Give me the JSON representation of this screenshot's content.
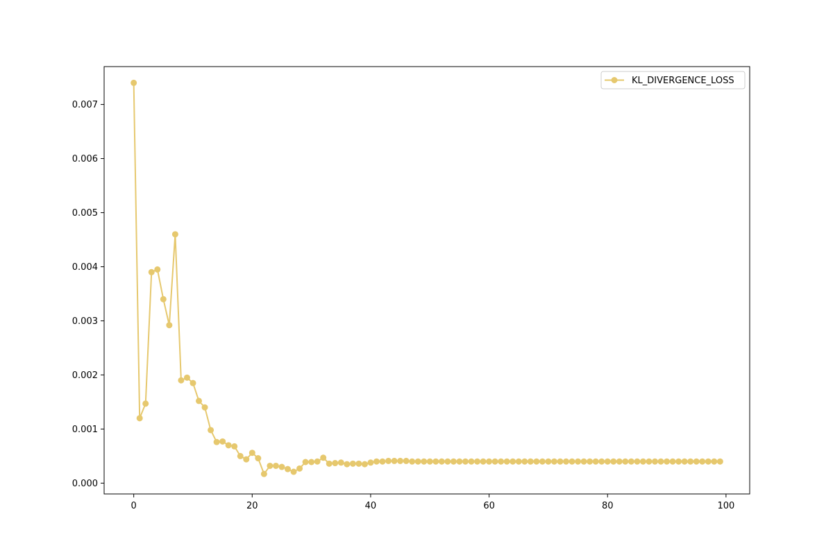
{
  "chart_data": {
    "type": "line",
    "title": "",
    "xlabel": "",
    "ylabel": "",
    "xlim": [
      -5,
      104
    ],
    "ylim": [
      -0.0002,
      0.0077
    ],
    "xticks": [
      0,
      20,
      40,
      60,
      80,
      100
    ],
    "xtick_labels": [
      "0",
      "20",
      "40",
      "60",
      "80",
      "100"
    ],
    "yticks": [
      0.0,
      0.001,
      0.002,
      0.003,
      0.004,
      0.005,
      0.006,
      0.007
    ],
    "ytick_labels": [
      "0.000",
      "0.001",
      "0.002",
      "0.003",
      "0.004",
      "0.005",
      "0.006",
      "0.007"
    ],
    "grid": false,
    "legend_position": "top-right",
    "marker": "circle",
    "series": [
      {
        "name": "KL_DIVERGENCE_LOSS",
        "color": "#e6c86e",
        "x": [
          0,
          1,
          2,
          3,
          4,
          5,
          6,
          7,
          8,
          9,
          10,
          11,
          12,
          13,
          14,
          15,
          16,
          17,
          18,
          19,
          20,
          21,
          22,
          23,
          24,
          25,
          26,
          27,
          28,
          29,
          30,
          31,
          32,
          33,
          34,
          35,
          36,
          37,
          38,
          39,
          40,
          41,
          42,
          43,
          44,
          45,
          46,
          47,
          48,
          49,
          50,
          51,
          52,
          53,
          54,
          55,
          56,
          57,
          58,
          59,
          60,
          61,
          62,
          63,
          64,
          65,
          66,
          67,
          68,
          69,
          70,
          71,
          72,
          73,
          74,
          75,
          76,
          77,
          78,
          79,
          80,
          81,
          82,
          83,
          84,
          85,
          86,
          87,
          88,
          89,
          90,
          91,
          92,
          93,
          94,
          95,
          96,
          97,
          98,
          99
        ],
        "values": [
          0.0074,
          0.0012,
          0.00147,
          0.0039,
          0.00395,
          0.0034,
          0.00292,
          0.0046,
          0.0019,
          0.00195,
          0.00185,
          0.00152,
          0.0014,
          0.00098,
          0.00076,
          0.00077,
          0.0007,
          0.00068,
          0.0005,
          0.00044,
          0.00056,
          0.00046,
          0.00017,
          0.00032,
          0.00032,
          0.0003,
          0.00026,
          0.00021,
          0.00027,
          0.00039,
          0.00039,
          0.0004,
          0.00047,
          0.00036,
          0.00037,
          0.00038,
          0.00035,
          0.00036,
          0.00036,
          0.00035,
          0.00038,
          0.0004,
          0.0004,
          0.00041,
          0.00041,
          0.00041,
          0.00041,
          0.0004,
          0.0004,
          0.0004,
          0.0004,
          0.0004,
          0.0004,
          0.0004,
          0.0004,
          0.0004,
          0.0004,
          0.0004,
          0.0004,
          0.0004,
          0.0004,
          0.0004,
          0.0004,
          0.0004,
          0.0004,
          0.0004,
          0.0004,
          0.0004,
          0.0004,
          0.0004,
          0.0004,
          0.0004,
          0.0004,
          0.0004,
          0.0004,
          0.0004,
          0.0004,
          0.0004,
          0.0004,
          0.0004,
          0.0004,
          0.0004,
          0.0004,
          0.0004,
          0.0004,
          0.0004,
          0.0004,
          0.0004,
          0.0004,
          0.0004,
          0.0004,
          0.0004,
          0.0004,
          0.0004,
          0.0004,
          0.0004,
          0.0004,
          0.0004,
          0.0004,
          0.0004
        ]
      }
    ]
  }
}
